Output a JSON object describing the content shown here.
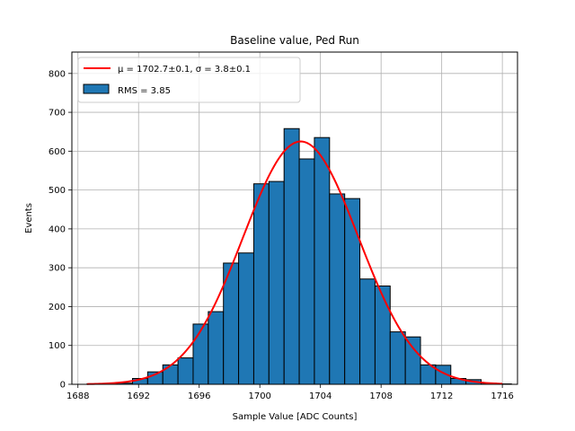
{
  "chart_data": {
    "type": "bar",
    "title": "Baseline value, Ped Run",
    "xlabel": "Sample Value [ADC Counts]",
    "ylabel": "Events",
    "xlim": [
      1687.6,
      1717.0
    ],
    "ylim": [
      0,
      855
    ],
    "xticks": [
      1688,
      1692,
      1696,
      1700,
      1704,
      1708,
      1712,
      1716
    ],
    "yticks": [
      0,
      100,
      200,
      300,
      400,
      500,
      600,
      700,
      800
    ],
    "grid": true,
    "legend_position": "top-left",
    "series": [
      {
        "name": "RMS = 3.85",
        "kind": "histogram",
        "color": "#1f77b4",
        "edge_color": "#000000",
        "bins": [
          {
            "x0": 1688.6,
            "x1": 1689.6,
            "value": 1
          },
          {
            "x0": 1689.6,
            "x1": 1690.6,
            "value": 1
          },
          {
            "x0": 1690.6,
            "x1": 1691.6,
            "value": 3
          },
          {
            "x0": 1691.6,
            "x1": 1692.6,
            "value": 15
          },
          {
            "x0": 1692.6,
            "x1": 1693.6,
            "value": 32
          },
          {
            "x0": 1693.6,
            "x1": 1694.6,
            "value": 50
          },
          {
            "x0": 1694.6,
            "x1": 1695.6,
            "value": 68
          },
          {
            "x0": 1695.6,
            "x1": 1696.6,
            "value": 155
          },
          {
            "x0": 1696.6,
            "x1": 1697.6,
            "value": 187
          },
          {
            "x0": 1697.6,
            "x1": 1698.6,
            "value": 312
          },
          {
            "x0": 1698.6,
            "x1": 1699.6,
            "value": 338
          },
          {
            "x0": 1699.6,
            "x1": 1700.6,
            "value": 516
          },
          {
            "x0": 1700.6,
            "x1": 1701.6,
            "value": 522
          },
          {
            "x0": 1701.6,
            "x1": 1702.6,
            "value": 658
          },
          {
            "x0": 1702.6,
            "x1": 1703.6,
            "value": 580
          },
          {
            "x0": 1703.6,
            "x1": 1704.6,
            "value": 635
          },
          {
            "x0": 1704.6,
            "x1": 1705.6,
            "value": 490
          },
          {
            "x0": 1705.6,
            "x1": 1706.6,
            "value": 478
          },
          {
            "x0": 1706.6,
            "x1": 1707.6,
            "value": 271
          },
          {
            "x0": 1707.6,
            "x1": 1708.6,
            "value": 253
          },
          {
            "x0": 1708.6,
            "x1": 1709.6,
            "value": 135
          },
          {
            "x0": 1709.6,
            "x1": 1710.6,
            "value": 122
          },
          {
            "x0": 1710.6,
            "x1": 1711.6,
            "value": 50
          },
          {
            "x0": 1711.6,
            "x1": 1712.6,
            "value": 49
          },
          {
            "x0": 1712.6,
            "x1": 1713.6,
            "value": 15
          },
          {
            "x0": 1713.6,
            "x1": 1714.6,
            "value": 12
          },
          {
            "x0": 1714.6,
            "x1": 1715.6,
            "value": 3
          },
          {
            "x0": 1715.6,
            "x1": 1716.6,
            "value": 1
          }
        ]
      },
      {
        "name": "μ = 1702.7±0.1, σ = 3.8±0.1",
        "kind": "gaussian_fit",
        "color": "#ff0000",
        "mu": 1702.7,
        "sigma": 3.8,
        "amplitude": 625,
        "x_range": [
          1688.6,
          1716.0
        ]
      }
    ]
  }
}
